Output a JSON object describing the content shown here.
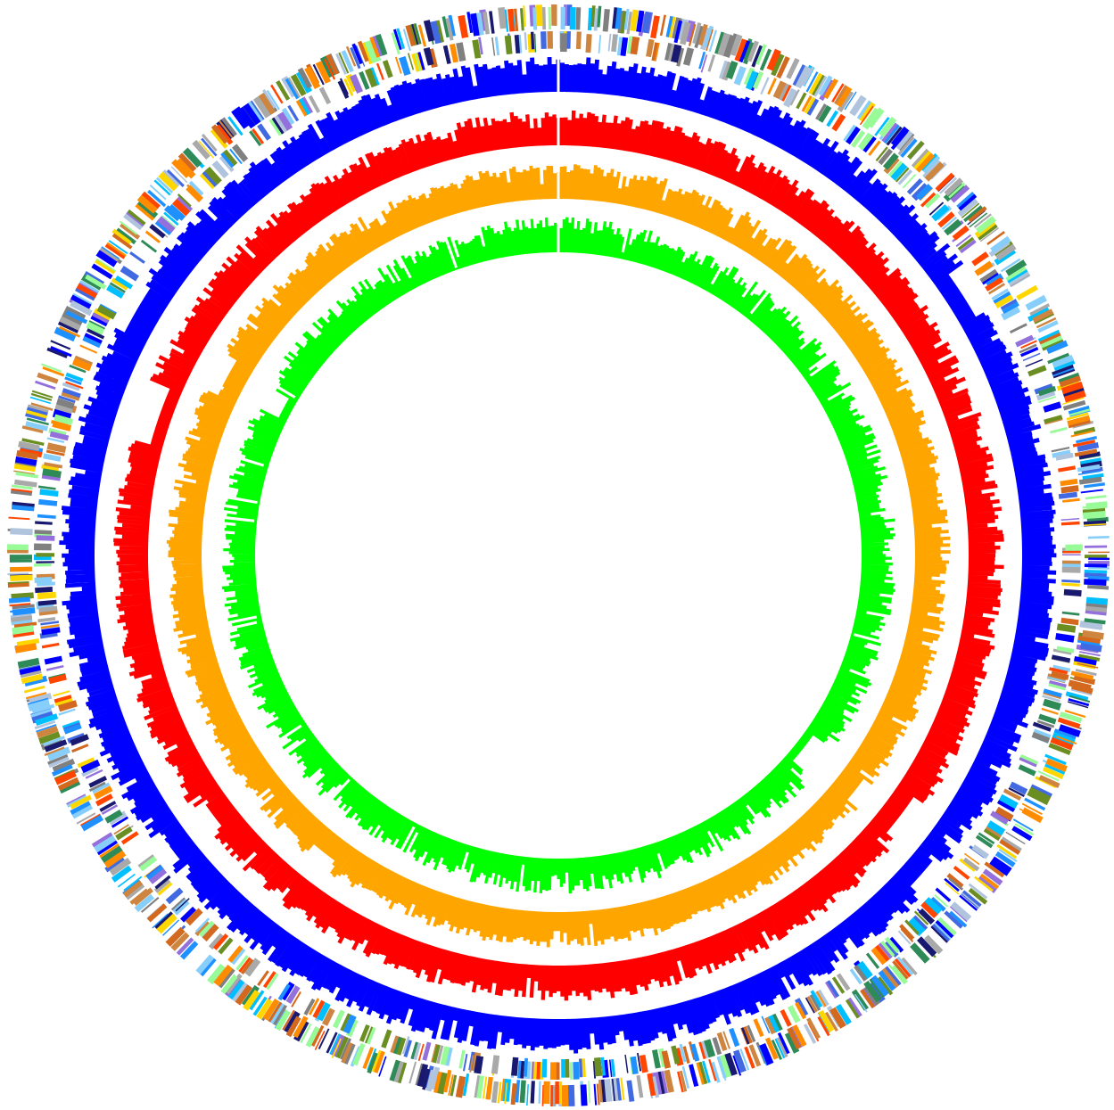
{
  "diagram": {
    "type": "circular-genome-map",
    "feature_palette": [
      "#0000ff",
      "#1e90ff",
      "#87cefa",
      "#4169e1",
      "#808080",
      "#a9a9a9",
      "#2e8b57",
      "#98fb98",
      "#ffd700",
      "#ff8c00",
      "#d2691e",
      "#9370db",
      "#ff4500",
      "#00bfff",
      "#b0c4de",
      "#191970",
      "#6b8e23",
      "#cd853f"
    ],
    "tracks": [
      {
        "name": "outer-features",
        "kind": "features",
        "color": "multi",
        "density": 0.72
      },
      {
        "name": "inner-features",
        "kind": "features",
        "color": "multi",
        "density": 0.55
      },
      {
        "name": "blue-coverage",
        "kind": "histogram",
        "color": "#0000ff"
      },
      {
        "name": "red-coverage",
        "kind": "histogram",
        "color": "#ff0000"
      },
      {
        "name": "orange-coverage",
        "kind": "histogram",
        "color": "#ffa500"
      },
      {
        "name": "green-coverage",
        "kind": "histogram",
        "color": "#00ff00"
      }
    ]
  }
}
